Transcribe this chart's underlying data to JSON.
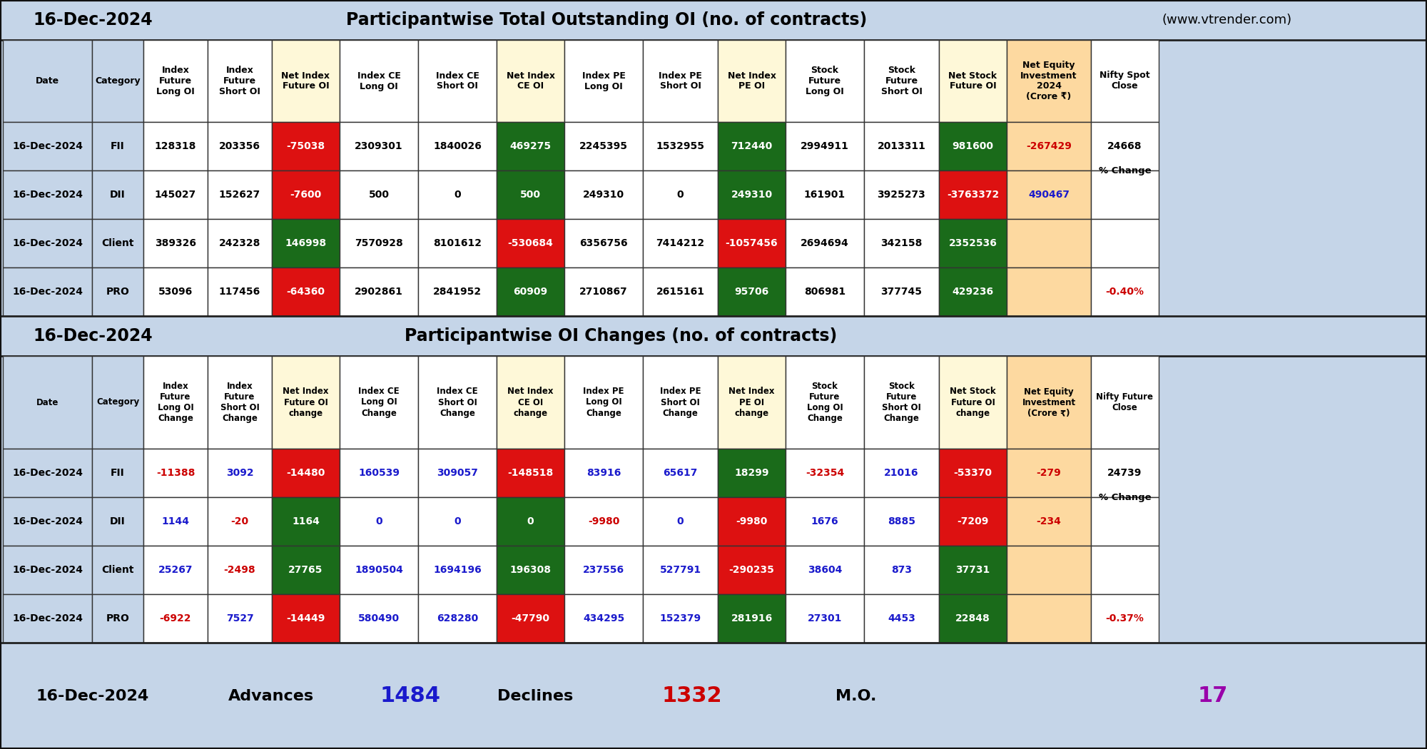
{
  "bg_color": "#c5d5e8",
  "title_row1_date": "16-Dec-2024",
  "title_row1_text": "Participantwise Total Outstanding OI (no. of contracts)",
  "title_row1_url": "(www.vtrender.com)",
  "title_row2_date": "16-Dec-2024",
  "title_row2_text": "Participantwise OI Changes (no. of contracts)",
  "footer_date": "16-Dec-2024",
  "footer_advances_label": "Advances",
  "footer_advances_val": "1484",
  "footer_declines_label": "Declines",
  "footer_declines_val": "1332",
  "footer_mo_label": "M.O.",
  "footer_mo_val": "17",
  "table1_headers": [
    "Date",
    "Category",
    "Index\nFuture\nLong OI",
    "Index\nFuture\nShort OI",
    "Net Index\nFuture OI",
    "Index CE\nLong OI",
    "Index CE\nShort OI",
    "Net Index\nCE OI",
    "Index PE\nLong OI",
    "Index PE\nShort OI",
    "Net Index\nPE OI",
    "Stock\nFuture\nLong OI",
    "Stock\nFuture\nShort OI",
    "Net Stock\nFuture OI",
    "Net Equity\nInvestment\n2024\n(Crore ₹)",
    "Nifty Spot\nClose"
  ],
  "table1_data": [
    [
      "16-Dec-2024",
      "FII",
      "128318",
      "203356",
      "-75038",
      "2309301",
      "1840026",
      "469275",
      "2245395",
      "1532955",
      "712440",
      "2994911",
      "2013311",
      "981600",
      "-267429",
      "24668"
    ],
    [
      "16-Dec-2024",
      "DII",
      "145027",
      "152627",
      "-7600",
      "500",
      "0",
      "500",
      "249310",
      "0",
      "249310",
      "161901",
      "3925273",
      "-3763372",
      "490467",
      ""
    ],
    [
      "16-Dec-2024",
      "Client",
      "389326",
      "242328",
      "146998",
      "7570928",
      "8101612",
      "-530684",
      "6356756",
      "7414212",
      "-1057456",
      "2694694",
      "342158",
      "2352536",
      "",
      ""
    ],
    [
      "16-Dec-2024",
      "PRO",
      "53096",
      "117456",
      "-64360",
      "2902861",
      "2841952",
      "60909",
      "2710867",
      "2615161",
      "95706",
      "806981",
      "377745",
      "429236",
      "",
      ""
    ]
  ],
  "table1_nifty_pct_change": "% Change",
  "table1_nifty_pct_val": "-0.40%",
  "table2_headers": [
    "Date",
    "Category",
    "Index\nFuture\nLong OI\nChange",
    "Index\nFuture\nShort OI\nChange",
    "Net Index\nFuture OI\nchange",
    "Index CE\nLong OI\nChange",
    "Index CE\nShort OI\nChange",
    "Net Index\nCE OI\nchange",
    "Index PE\nLong OI\nChange",
    "Index PE\nShort OI\nChange",
    "Net Index\nPE OI\nchange",
    "Stock\nFuture\nLong OI\nChange",
    "Stock\nFuture\nShort OI\nChange",
    "Net Stock\nFuture OI\nchange",
    "Net Equity\nInvestment\n(Crore ₹)",
    "Nifty Future\nClose"
  ],
  "table2_data": [
    [
      "16-Dec-2024",
      "FII",
      "-11388",
      "3092",
      "-14480",
      "160539",
      "309057",
      "-148518",
      "83916",
      "65617",
      "18299",
      "-32354",
      "21016",
      "-53370",
      "-279",
      "24739"
    ],
    [
      "16-Dec-2024",
      "DII",
      "1144",
      "-20",
      "1164",
      "0",
      "0",
      "0",
      "-9980",
      "0",
      "-9980",
      "1676",
      "8885",
      "-7209",
      "-234",
      ""
    ],
    [
      "16-Dec-2024",
      "Client",
      "25267",
      "-2498",
      "27765",
      "1890504",
      "1694196",
      "196308",
      "237556",
      "527791",
      "-290235",
      "38604",
      "873",
      "37731",
      "",
      ""
    ],
    [
      "16-Dec-2024",
      "PRO",
      "-6922",
      "7527",
      "-14449",
      "580490",
      "628280",
      "-47790",
      "434295",
      "152379",
      "281916",
      "27301",
      "4453",
      "22848",
      "",
      ""
    ]
  ],
  "table2_nifty_pct_change": "% Change",
  "table2_nifty_pct_val": "-0.37%",
  "col_bg_blue": "#c5d5e8",
  "col_bg_white": "#ffffff",
  "col_bg_yellow": "#fef8d8",
  "col_bg_orange": "#fdd9a0",
  "col_bg_green_net": "#1a6b1a",
  "col_bg_red_net": "#dd1111",
  "text_red": "#cc0000",
  "text_blue": "#1a1acc",
  "net_cols": [
    4,
    7,
    10,
    13
  ],
  "net_equity_col": 14,
  "nifty_col": 15,
  "blue_cols": [
    0,
    1
  ]
}
